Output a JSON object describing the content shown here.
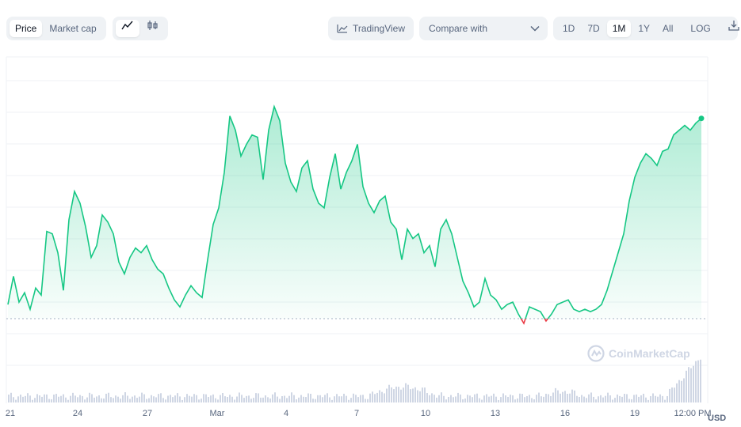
{
  "toolbar": {
    "type_tabs": [
      "Price",
      "Market cap"
    ],
    "active_type": "Price",
    "tradingview_label": "TradingView",
    "compare_label": "Compare with",
    "ranges": [
      "1D",
      "7D",
      "1M",
      "1Y",
      "All"
    ],
    "active_range": "1M",
    "log_label": "LOG"
  },
  "watermark": "CoinMarketCap",
  "colors": {
    "up": "#16c784",
    "down": "#ea3943",
    "grid": "#eff2f5",
    "volume": "#cfd6e4",
    "text": "#58667e"
  },
  "chart_data": {
    "type": "line",
    "title": "",
    "xlabel": "",
    "ylabel": "",
    "y_unit_label": "USD",
    "x_ticks": [
      "21",
      "24",
      "27",
      "Mar",
      "4",
      "7",
      "10",
      "13",
      "16",
      "19",
      "12:00 PM"
    ],
    "baseline_note": "dotted baseline at opening price; green above, red below",
    "price_series_relative": [
      [
        0,
        0.06
      ],
      [
        1,
        0.18
      ],
      [
        2,
        0.07
      ],
      [
        3,
        0.11
      ],
      [
        4,
        0.04
      ],
      [
        5,
        0.13
      ],
      [
        6,
        0.1
      ],
      [
        7,
        0.37
      ],
      [
        8,
        0.36
      ],
      [
        9,
        0.28
      ],
      [
        10,
        0.12
      ],
      [
        11,
        0.42
      ],
      [
        12,
        0.54
      ],
      [
        13,
        0.49
      ],
      [
        14,
        0.39
      ],
      [
        15,
        0.26
      ],
      [
        16,
        0.31
      ],
      [
        17,
        0.44
      ],
      [
        18,
        0.41
      ],
      [
        19,
        0.36
      ],
      [
        20,
        0.24
      ],
      [
        21,
        0.19
      ],
      [
        22,
        0.26
      ],
      [
        23,
        0.3
      ],
      [
        24,
        0.28
      ],
      [
        25,
        0.31
      ],
      [
        26,
        0.25
      ],
      [
        27,
        0.21
      ],
      [
        28,
        0.19
      ],
      [
        29,
        0.13
      ],
      [
        30,
        0.08
      ],
      [
        31,
        0.05
      ],
      [
        32,
        0.1
      ],
      [
        33,
        0.14
      ],
      [
        34,
        0.11
      ],
      [
        35,
        0.09
      ],
      [
        36,
        0.25
      ],
      [
        37,
        0.4
      ],
      [
        38,
        0.47
      ],
      [
        39,
        0.62
      ],
      [
        40,
        0.86
      ],
      [
        41,
        0.8
      ],
      [
        42,
        0.69
      ],
      [
        43,
        0.74
      ],
      [
        44,
        0.78
      ],
      [
        45,
        0.77
      ],
      [
        46,
        0.59
      ],
      [
        47,
        0.8
      ],
      [
        48,
        0.9
      ],
      [
        49,
        0.84
      ],
      [
        50,
        0.66
      ],
      [
        51,
        0.58
      ],
      [
        52,
        0.54
      ],
      [
        53,
        0.64
      ],
      [
        54,
        0.67
      ],
      [
        55,
        0.55
      ],
      [
        56,
        0.49
      ],
      [
        57,
        0.47
      ],
      [
        58,
        0.6
      ],
      [
        59,
        0.7
      ],
      [
        60,
        0.55
      ],
      [
        61,
        0.62
      ],
      [
        62,
        0.67
      ],
      [
        63,
        0.74
      ],
      [
        64,
        0.56
      ],
      [
        65,
        0.49
      ],
      [
        66,
        0.45
      ],
      [
        67,
        0.5
      ],
      [
        68,
        0.52
      ],
      [
        69,
        0.41
      ],
      [
        70,
        0.38
      ],
      [
        71,
        0.25
      ],
      [
        72,
        0.38
      ],
      [
        73,
        0.34
      ],
      [
        74,
        0.36
      ],
      [
        75,
        0.28
      ],
      [
        76,
        0.31
      ],
      [
        77,
        0.22
      ],
      [
        78,
        0.38
      ],
      [
        79,
        0.42
      ],
      [
        80,
        0.36
      ],
      [
        81,
        0.26
      ],
      [
        82,
        0.16
      ],
      [
        83,
        0.11
      ],
      [
        84,
        0.05
      ],
      [
        85,
        0.07
      ],
      [
        86,
        0.17
      ],
      [
        87,
        0.1
      ],
      [
        88,
        0.08
      ],
      [
        89,
        0.04
      ],
      [
        90,
        0.06
      ],
      [
        91,
        0.07
      ],
      [
        92,
        0.02
      ],
      [
        93,
        -0.02
      ],
      [
        94,
        0.05
      ],
      [
        95,
        0.04
      ],
      [
        96,
        0.03
      ],
      [
        97,
        -0.01
      ],
      [
        98,
        0.02
      ],
      [
        99,
        0.06
      ],
      [
        100,
        0.07
      ],
      [
        101,
        0.08
      ],
      [
        102,
        0.04
      ],
      [
        103,
        0.03
      ],
      [
        104,
        0.04
      ],
      [
        105,
        0.03
      ],
      [
        106,
        0.04
      ],
      [
        107,
        0.06
      ],
      [
        108,
        0.12
      ],
      [
        109,
        0.2
      ],
      [
        110,
        0.28
      ],
      [
        111,
        0.36
      ],
      [
        112,
        0.5
      ],
      [
        113,
        0.6
      ],
      [
        114,
        0.66
      ],
      [
        115,
        0.7
      ],
      [
        116,
        0.68
      ],
      [
        117,
        0.65
      ],
      [
        118,
        0.71
      ],
      [
        119,
        0.72
      ],
      [
        120,
        0.78
      ],
      [
        121,
        0.8
      ],
      [
        122,
        0.82
      ],
      [
        123,
        0.8
      ],
      [
        124,
        0.83
      ],
      [
        125,
        0.85
      ]
    ]
  }
}
